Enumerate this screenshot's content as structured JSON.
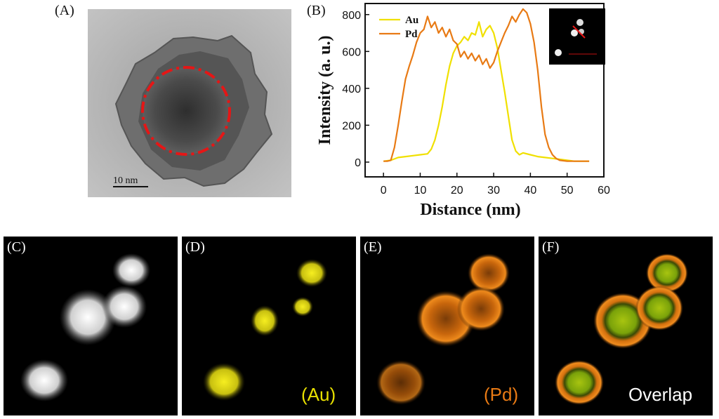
{
  "panels": {
    "a": {
      "label": "(A)",
      "scale_bar": "10 nm"
    },
    "b": {
      "label": "(B)"
    },
    "c": {
      "label": "(C)"
    },
    "d": {
      "label": "(D)",
      "caption": "(Au)",
      "color": "#e8e000"
    },
    "e": {
      "label": "(E)",
      "caption": "(Pd)",
      "color": "#e87a14"
    },
    "f": {
      "label": "(F)",
      "caption": "Overlap",
      "color": "#ffffff"
    }
  },
  "chart_data": {
    "type": "line",
    "title": "",
    "xlabel": "Distance (nm)",
    "ylabel": "Intensity (a. u.)",
    "xlim": [
      -5,
      60
    ],
    "ylim": [
      -80,
      860
    ],
    "xticks": [
      0,
      10,
      20,
      30,
      40,
      50,
      60
    ],
    "yticks": [
      0,
      200,
      400,
      600,
      800
    ],
    "legend_position": "top-left",
    "series": [
      {
        "name": "Au",
        "color": "#f0e000",
        "x": [
          0,
          2,
          4,
          6,
          8,
          10,
          12,
          13,
          14,
          15,
          16,
          17,
          18,
          19,
          20,
          21,
          22,
          23,
          24,
          25,
          26,
          27,
          28,
          29,
          30,
          31,
          32,
          33,
          34,
          35,
          36,
          37,
          38,
          40,
          42,
          44,
          46,
          48,
          50,
          52,
          54,
          56
        ],
        "y": [
          5,
          10,
          25,
          30,
          35,
          40,
          45,
          70,
          120,
          200,
          300,
          420,
          520,
          590,
          630,
          650,
          680,
          660,
          700,
          690,
          760,
          680,
          720,
          740,
          700,
          620,
          500,
          380,
          250,
          120,
          60,
          40,
          50,
          40,
          30,
          25,
          20,
          15,
          10,
          5,
          5,
          5
        ]
      },
      {
        "name": "Pd",
        "color": "#e87a14",
        "x": [
          0,
          1,
          2,
          3,
          4,
          5,
          6,
          7,
          8,
          9,
          10,
          11,
          12,
          13,
          14,
          15,
          16,
          17,
          18,
          19,
          20,
          21,
          22,
          23,
          24,
          25,
          26,
          27,
          28,
          29,
          30,
          31,
          32,
          33,
          34,
          35,
          36,
          37,
          38,
          39,
          40,
          41,
          42,
          43,
          44,
          45,
          46,
          47,
          48,
          50,
          52,
          54,
          56
        ],
        "y": [
          5,
          5,
          10,
          80,
          200,
          330,
          450,
          520,
          580,
          650,
          700,
          720,
          790,
          730,
          760,
          700,
          730,
          680,
          720,
          660,
          640,
          570,
          600,
          560,
          590,
          550,
          580,
          530,
          560,
          510,
          540,
          600,
          650,
          700,
          740,
          790,
          760,
          800,
          830,
          810,
          750,
          650,
          500,
          300,
          150,
          80,
          40,
          20,
          10,
          5,
          5,
          5,
          5
        ]
      }
    ]
  }
}
